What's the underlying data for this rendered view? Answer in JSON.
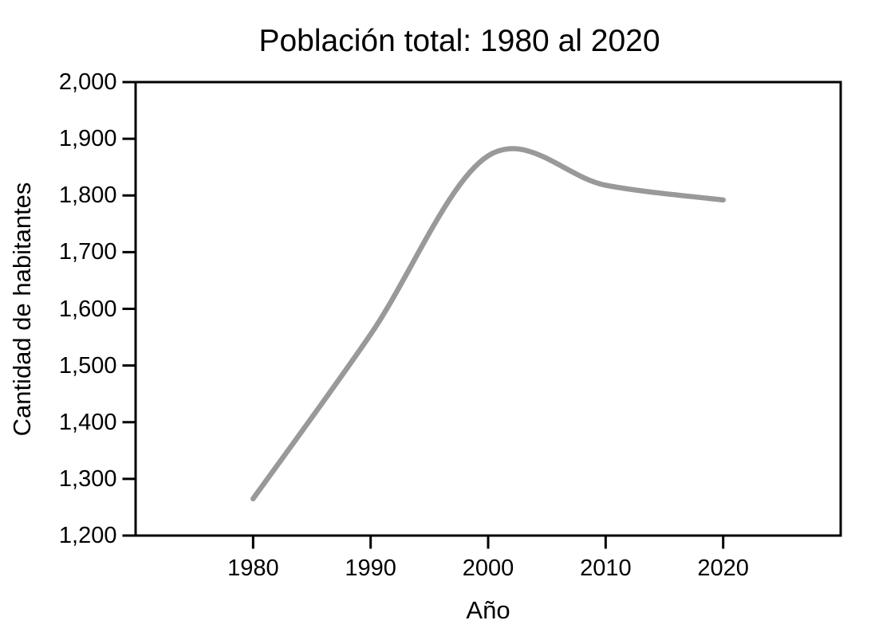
{
  "chart_data": {
    "type": "line",
    "title": "Población total: 1980 al 2020",
    "xlabel": "Año",
    "ylabel": "Cantidad de habitantes",
    "x": [
      1980,
      1990,
      2000,
      2010,
      2020
    ],
    "y": [
      1265,
      1555,
      1870,
      1818,
      1792
    ],
    "peak_approx": {
      "x": 2002,
      "y": 1880
    },
    "xlim": [
      1970,
      2030
    ],
    "ylim": [
      1200,
      2000
    ],
    "x_ticks": [
      1980,
      1990,
      2000,
      2010,
      2020
    ],
    "x_tick_labels": [
      "1980",
      "1990",
      "2000",
      "2010",
      "2020"
    ],
    "y_ticks": [
      1200,
      1300,
      1400,
      1500,
      1600,
      1700,
      1800,
      1900,
      2000
    ],
    "y_tick_labels": [
      "1,200",
      "1,300",
      "1,400",
      "1,500",
      "1,600",
      "1,700",
      "1,800",
      "1,900",
      "2,000"
    ],
    "grid": false,
    "legend": false,
    "curve": "smooth",
    "line_color": "#999999",
    "axis_color": "#000000",
    "text_color": "#000000",
    "background_color": "#ffffff"
  }
}
